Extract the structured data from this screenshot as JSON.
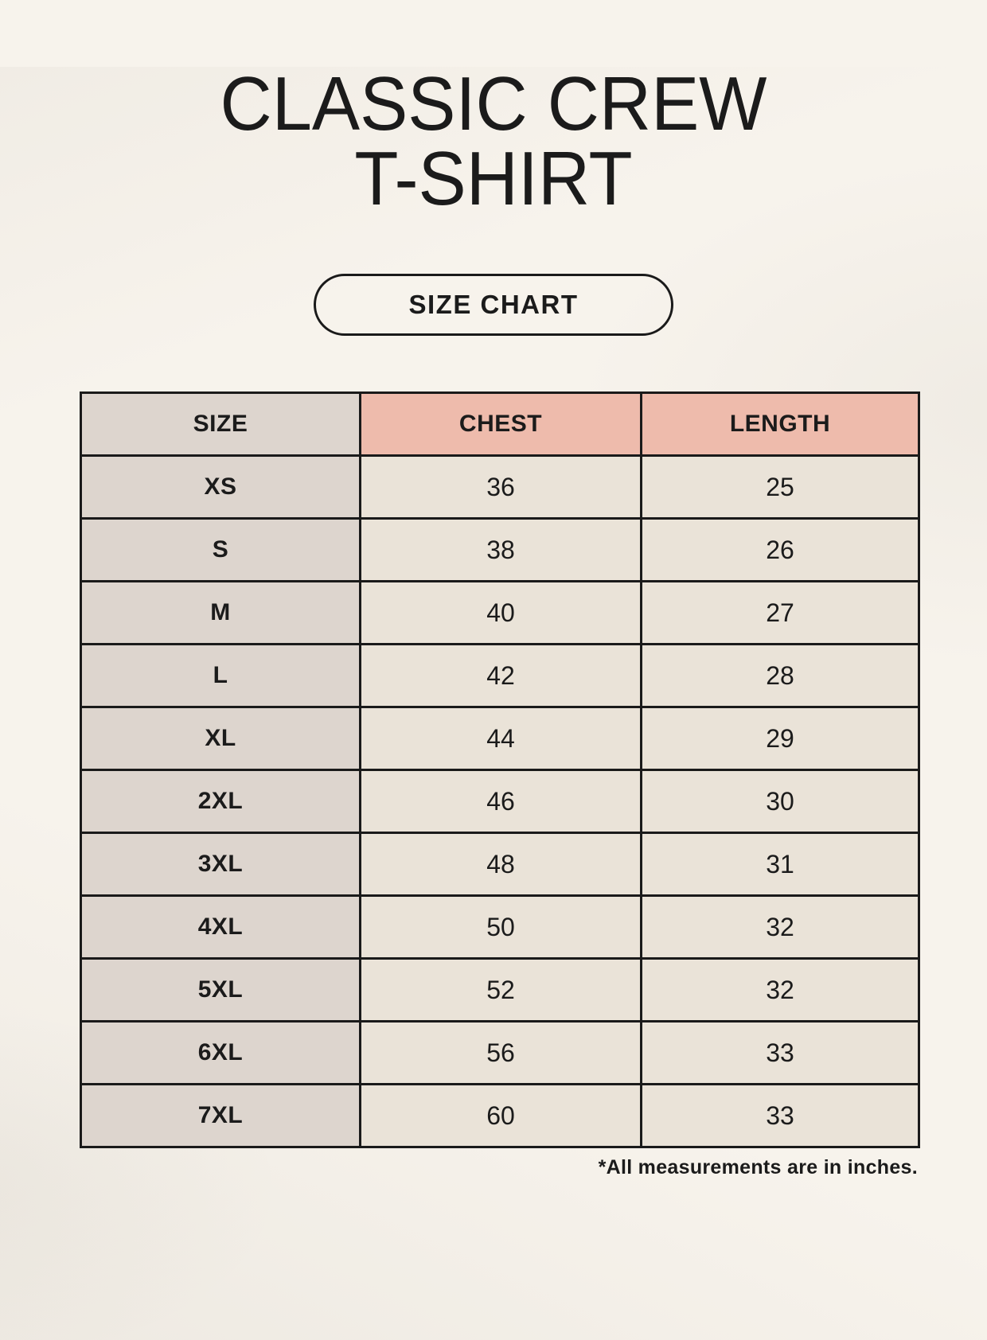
{
  "header": {
    "title_line1": "CLASSIC CREW",
    "title_line2": "T-SHIRT",
    "button_label": "SIZE CHART"
  },
  "footnote": "*All measurements are in inches.",
  "colors": {
    "page_bg": "#f7f3ec",
    "header_accent": "#eebbac",
    "size_column_bg": "#ddd5ce",
    "cell_bg": "#eae3d8",
    "border": "#1a1a1a",
    "text": "#1b1b1b"
  },
  "chart_data": {
    "type": "table",
    "columns": [
      "SIZE",
      "CHEST",
      "LENGTH"
    ],
    "units": "inches",
    "rows": [
      [
        "XS",
        "36",
        "25"
      ],
      [
        "S",
        "38",
        "26"
      ],
      [
        "M",
        "40",
        "27"
      ],
      [
        "L",
        "42",
        "28"
      ],
      [
        "XL",
        "44",
        "29"
      ],
      [
        "2XL",
        "46",
        "30"
      ],
      [
        "3XL",
        "48",
        "31"
      ],
      [
        "4XL",
        "50",
        "32"
      ],
      [
        "5XL",
        "52",
        "32"
      ],
      [
        "6XL",
        "56",
        "33"
      ],
      [
        "7XL",
        "60",
        "33"
      ]
    ]
  }
}
